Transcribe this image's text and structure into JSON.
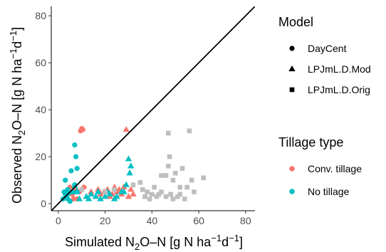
{
  "chart_data": {
    "type": "scatter",
    "xlabel": "Simulated N₂O–N [g N ha⁻¹d⁻¹]",
    "ylabel": "Observed N₂O–N [g N ha⁻¹d⁻¹]",
    "xlabel_parts": {
      "main": "Simulated N",
      "sub": "2",
      "mid": "O–N [g N ha",
      "sup1": "−1",
      "mid2": "d",
      "sup2": "−1",
      "end": "]"
    },
    "ylabel_parts": {
      "main": "Observed N",
      "sub": "2",
      "mid": "O–N [g N ha",
      "sup1": "−1",
      "mid2": "d",
      "sup2": "−1",
      "end": "]"
    },
    "xlim": [
      -3,
      84
    ],
    "ylim": [
      -3,
      84
    ],
    "x_ticks": [
      "0",
      "20",
      "40",
      "60",
      "80"
    ],
    "y_ticks": [
      "0",
      "20",
      "40",
      "60",
      "80"
    ],
    "x_tick_values": [
      0,
      20,
      40,
      60,
      80
    ],
    "y_tick_values": [
      0,
      20,
      40,
      60,
      80
    ],
    "reference_line": "1:1",
    "grid": false,
    "legend_placement": "right",
    "legends": [
      {
        "title": "Model",
        "key": "shape",
        "entries": [
          {
            "label": "DayCent",
            "shape": "circle"
          },
          {
            "label": "LPJmL.D.Mod",
            "shape": "triangle"
          },
          {
            "label": "LPJmL.D.Orig",
            "shape": "square"
          }
        ]
      },
      {
        "title": "Tillage type",
        "key": "color",
        "entries": [
          {
            "label": "Conv. tillage",
            "color": "#f8766d"
          },
          {
            "label": "No tillage",
            "color": "#00bfc4"
          }
        ]
      }
    ],
    "colors": {
      "conv": "#f8766d",
      "no": "#00bfc4",
      "orig": "#bebebe"
    },
    "series": [
      {
        "model": "DayCent",
        "tillage": "conv",
        "shape": "circle",
        "points": [
          [
            9.5,
            31
          ],
          [
            10,
            32
          ],
          [
            10.5,
            31.5
          ],
          [
            5,
            7
          ],
          [
            6,
            4
          ],
          [
            7.5,
            6
          ],
          [
            9,
            5
          ],
          [
            10,
            6
          ],
          [
            6.5,
            2
          ],
          [
            11,
            7
          ],
          [
            8,
            2
          ],
          [
            4,
            4
          ]
        ]
      },
      {
        "model": "DayCent",
        "tillage": "no",
        "shape": "circle",
        "points": [
          [
            7,
            25
          ],
          [
            7.5,
            20
          ],
          [
            8,
            15
          ],
          [
            5.5,
            14
          ],
          [
            3,
            10
          ],
          [
            4,
            6
          ],
          [
            2.5,
            5
          ],
          [
            3.5,
            3
          ],
          [
            2,
            2
          ],
          [
            4.5,
            4.5
          ],
          [
            6,
            5
          ],
          [
            7,
            8
          ],
          [
            5,
            1
          ],
          [
            3,
            4
          ],
          [
            8,
            5
          ],
          [
            4,
            2
          ]
        ]
      },
      {
        "model": "LPJmL.D.Mod",
        "tillage": "conv",
        "shape": "triangle",
        "points": [
          [
            29,
            31.5
          ],
          [
            14,
            5
          ],
          [
            17,
            6
          ],
          [
            19.5,
            5
          ],
          [
            21,
            6
          ],
          [
            23,
            4
          ],
          [
            24,
            7
          ],
          [
            25,
            5
          ],
          [
            26,
            6
          ],
          [
            27,
            4
          ],
          [
            28,
            7
          ],
          [
            30,
            3
          ],
          [
            31,
            6
          ],
          [
            32,
            4
          ],
          [
            22,
            3
          ],
          [
            18,
            4
          ]
        ]
      },
      {
        "model": "LPJmL.D.Mod",
        "tillage": "no",
        "shape": "triangle",
        "points": [
          [
            30,
            19
          ],
          [
            31,
            16
          ],
          [
            30.5,
            13
          ],
          [
            29,
            8
          ],
          [
            28,
            5
          ],
          [
            7,
            7.5
          ],
          [
            8,
            5
          ],
          [
            9,
            2
          ],
          [
            13,
            2
          ],
          [
            14,
            4
          ],
          [
            16,
            3
          ],
          [
            17,
            5
          ],
          [
            18,
            2
          ],
          [
            20,
            3
          ],
          [
            21,
            5
          ],
          [
            22,
            4
          ],
          [
            24,
            2
          ],
          [
            25,
            3
          ],
          [
            27,
            5
          ],
          [
            12,
            3
          ]
        ]
      },
      {
        "model": "LPJmL.D.Orig",
        "tillage": "conv",
        "shape": "square",
        "points": [
          [
            10,
            6
          ],
          [
            20,
            5
          ],
          [
            24,
            6
          ]
        ]
      },
      {
        "model": "LPJmL.D.Orig",
        "tillage": "no",
        "shape": "square",
        "points": [
          [
            56,
            31
          ],
          [
            47,
            30
          ],
          [
            47.5,
            20
          ],
          [
            47,
            16
          ],
          [
            53,
            15
          ],
          [
            50,
            13
          ],
          [
            49,
            10
          ],
          [
            44,
            12
          ],
          [
            46,
            12
          ],
          [
            57,
            10
          ],
          [
            62,
            11
          ],
          [
            58,
            5
          ],
          [
            55,
            7
          ],
          [
            52,
            4
          ],
          [
            51,
            3
          ],
          [
            48,
            4
          ],
          [
            46,
            3
          ],
          [
            44,
            5
          ],
          [
            41,
            7
          ],
          [
            40,
            4
          ],
          [
            38,
            5
          ],
          [
            37,
            3
          ],
          [
            35,
            9
          ],
          [
            32,
            8
          ],
          [
            43,
            4
          ],
          [
            54,
            2
          ],
          [
            39,
            2
          ],
          [
            36,
            6
          ],
          [
            42,
            3
          ],
          [
            52,
            7
          ],
          [
            49,
            2
          ]
        ]
      }
    ]
  }
}
